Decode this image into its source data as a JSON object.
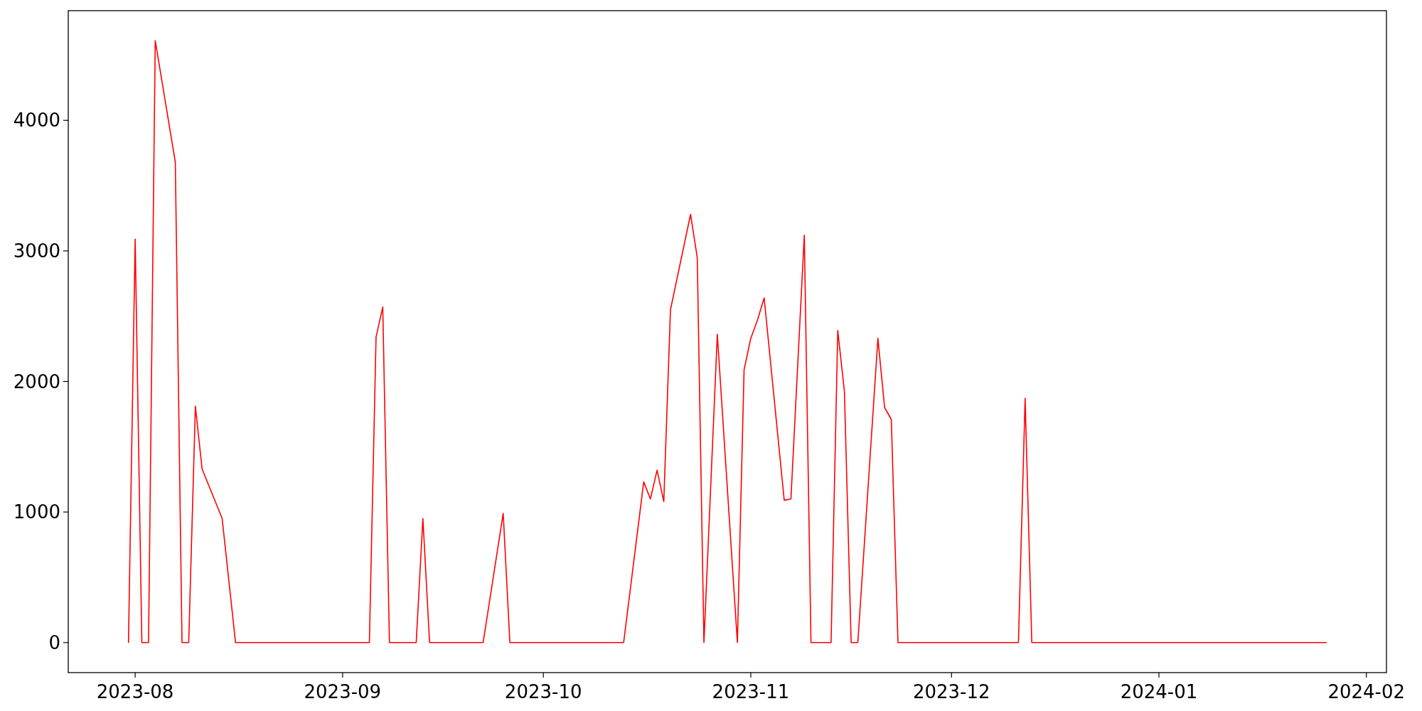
{
  "chart_data": {
    "type": "line",
    "x": [
      "2023-07-31",
      "2023-08-01",
      "2023-08-02",
      "2023-08-03",
      "2023-08-04",
      "2023-08-07",
      "2023-08-08",
      "2023-08-09",
      "2023-08-10",
      "2023-08-11",
      "2023-08-14",
      "2023-08-16",
      "2023-09-05",
      "2023-09-06",
      "2023-09-07",
      "2023-09-08",
      "2023-09-12",
      "2023-09-13",
      "2023-09-14",
      "2023-09-22",
      "2023-09-25",
      "2023-09-26",
      "2023-10-13",
      "2023-10-16",
      "2023-10-17",
      "2023-10-18",
      "2023-10-19",
      "2023-10-20",
      "2023-10-23",
      "2023-10-24",
      "2023-10-25",
      "2023-10-27",
      "2023-10-30",
      "2023-10-31",
      "2023-11-01",
      "2023-11-02",
      "2023-11-03",
      "2023-11-06",
      "2023-11-07",
      "2023-11-09",
      "2023-11-10",
      "2023-11-13",
      "2023-11-14",
      "2023-11-15",
      "2023-11-16",
      "2023-11-17",
      "2023-11-20",
      "2023-11-21",
      "2023-11-22",
      "2023-11-23",
      "2023-12-11",
      "2023-12-12",
      "2023-12-13",
      "2024-01-26"
    ],
    "series": [
      {
        "color": "#ff0000",
        "values": [
          0,
          3090,
          0,
          0,
          4610,
          3680,
          0,
          0,
          1810,
          1330,
          950,
          0,
          0,
          2340,
          2570,
          0,
          0,
          950,
          0,
          0,
          990,
          0,
          0,
          1230,
          1100,
          1320,
          1080,
          2550,
          3280,
          2950,
          0,
          2360,
          0,
          2090,
          2330,
          2470,
          2640,
          1090,
          1100,
          3120,
          0,
          0,
          2390,
          1920,
          0,
          0,
          2330,
          1800,
          1710,
          0,
          0,
          1870,
          0,
          0
        ]
      }
    ],
    "xlim": [
      "2023-07-22",
      "2024-02-04"
    ],
    "xticks": [
      {
        "value": "2023-08-01",
        "label": "2023-08"
      },
      {
        "value": "2023-09-01",
        "label": "2023-09"
      },
      {
        "value": "2023-10-01",
        "label": "2023-10"
      },
      {
        "value": "2023-11-01",
        "label": "2023-11"
      },
      {
        "value": "2023-12-01",
        "label": "2023-12"
      },
      {
        "value": "2024-01-01",
        "label": "2024-01"
      },
      {
        "value": "2024-02-01",
        "label": "2024-02"
      }
    ],
    "ylim": [
      -230,
      4840
    ],
    "yticks": [
      0,
      1000,
      2000,
      3000,
      4000
    ],
    "grid": false,
    "marker": "none",
    "line_style": "solid"
  }
}
